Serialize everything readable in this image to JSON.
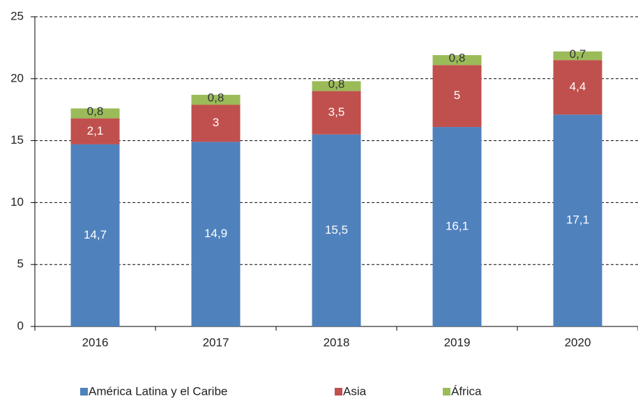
{
  "chart_data": {
    "type": "stacked_bar",
    "categories": [
      "2016",
      "2017",
      "2018",
      "2019",
      "2020"
    ],
    "series": [
      {
        "name": "América Latina y el Caribe",
        "color": "#4f81bd",
        "values": [
          14.7,
          14.9,
          15.5,
          16.1,
          17.1
        ],
        "value_labels": [
          "14,7",
          "14,9",
          "15,5",
          "16,1",
          "17,1"
        ]
      },
      {
        "name": "Asia",
        "color": "#c0504d",
        "values": [
          2.1,
          3,
          3.5,
          5,
          4.4
        ],
        "value_labels": [
          "2,1",
          "3",
          "3,5",
          "5",
          "4,4"
        ]
      },
      {
        "name": "África",
        "color": "#9bbb59",
        "values": [
          0.8,
          0.8,
          0.8,
          0.8,
          0.7
        ],
        "value_labels": [
          "0,8",
          "0,8",
          "0,8",
          "0,8",
          "0,7"
        ]
      }
    ],
    "ylim": [
      0,
      25
    ],
    "yticks": [
      0,
      5,
      10,
      15,
      20,
      25
    ],
    "grid": true,
    "legend": "bottom"
  }
}
